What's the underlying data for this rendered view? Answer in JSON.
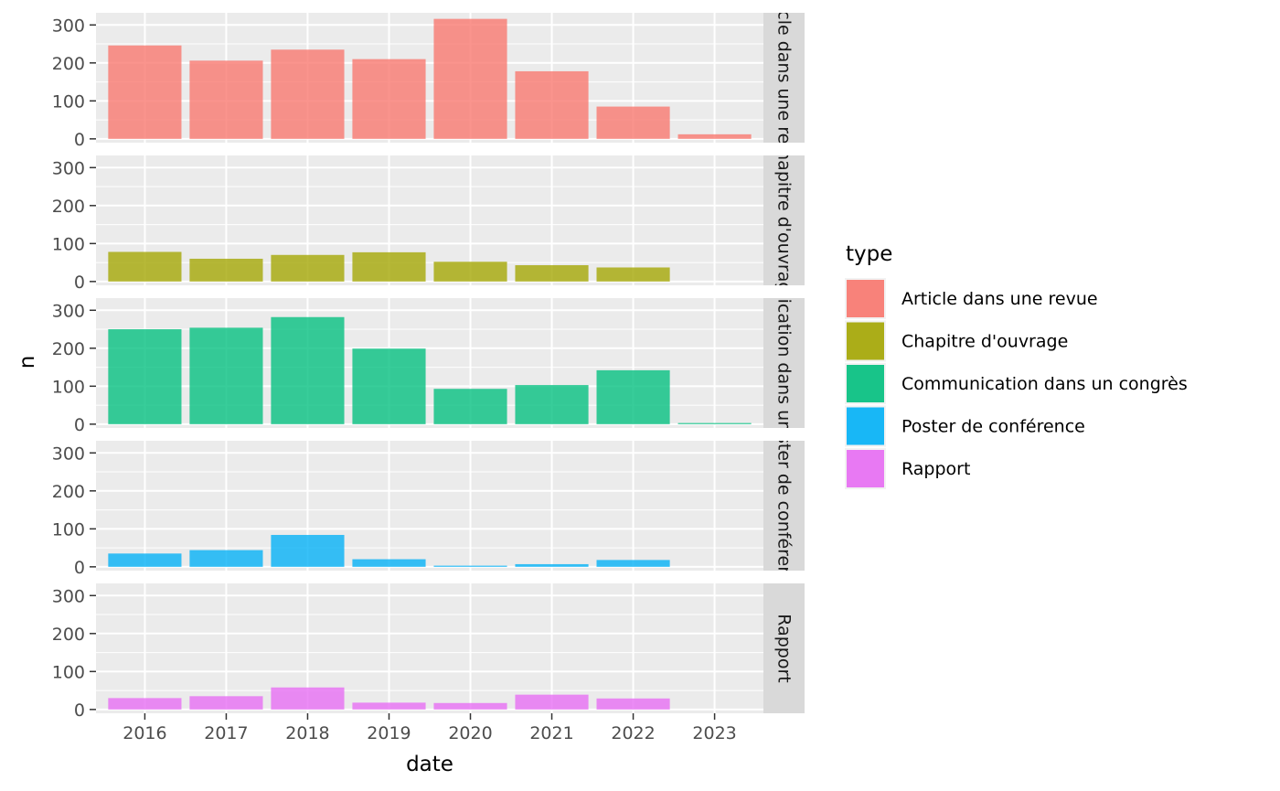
{
  "chart_data": {
    "type": "bar",
    "faceted": "rows",
    "xlabel": "date",
    "ylabel": "n",
    "categories": [
      "2016",
      "2017",
      "2018",
      "2019",
      "2020",
      "2021",
      "2022",
      "2023"
    ],
    "y_ticks": [
      0,
      100,
      200,
      300
    ],
    "ylim": [
      -10,
      332
    ],
    "grid": true,
    "legend": {
      "title": "type",
      "position": "right"
    },
    "series": [
      {
        "name": "Article dans une revue",
        "strip_label": "Article dans une revue",
        "color": "#F8766D",
        "values": [
          246,
          206,
          235,
          210,
          316,
          178,
          85,
          12
        ]
      },
      {
        "name": "Chapitre d'ouvrage",
        "strip_label": "Chapitre d'ouvrage",
        "color": "#A3A500",
        "values": [
          78,
          60,
          70,
          77,
          52,
          43,
          37,
          0
        ]
      },
      {
        "name": "Communication dans un congrès",
        "strip_label": "Communication dans un congrès",
        "color": "#00BF7D",
        "values": [
          250,
          254,
          282,
          199,
          93,
          103,
          142,
          3
        ]
      },
      {
        "name": "Poster de conférence",
        "strip_label": "Poster de conférence",
        "color": "#00B0F6",
        "values": [
          35,
          44,
          84,
          20,
          3,
          7,
          18,
          0
        ]
      },
      {
        "name": "Rapport",
        "strip_label": "Rapport",
        "color": "#E76BF3",
        "values": [
          30,
          35,
          58,
          18,
          17,
          39,
          29,
          0
        ]
      }
    ]
  }
}
